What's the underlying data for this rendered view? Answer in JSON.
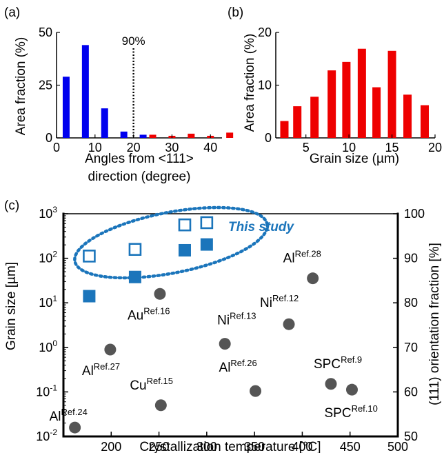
{
  "chart_data": [
    {
      "panel_label": "(a)",
      "type": "bar",
      "xlabel_lines": [
        "Angles from <111>",
        "direction (degree)"
      ],
      "ylabel": "Area fraction (%)",
      "xlim": [
        0,
        43
      ],
      "ylim": [
        0,
        50
      ],
      "xticks": [
        0,
        10,
        20,
        30,
        40
      ],
      "yticks": [
        0,
        25,
        50
      ],
      "marker_line": {
        "x": 20,
        "label": "90%"
      },
      "series": [
        {
          "color": "#0000ee",
          "x": [
            2.5,
            7.5,
            12.5,
            17.5,
            22.5
          ],
          "values": [
            29,
            44,
            14,
            3,
            1.5
          ]
        },
        {
          "color": "#ee0000",
          "x": [
            25,
            30,
            35,
            40,
            45
          ],
          "values": [
            1.5,
            1,
            2,
            1,
            2.5
          ]
        }
      ]
    },
    {
      "panel_label": "(b)",
      "type": "bar",
      "xlabel": "Grain size (µm)",
      "ylabel": "Area fraction (%)",
      "xlim": [
        1.5,
        20
      ],
      "ylim": [
        0,
        20
      ],
      "xticks": [
        5,
        10,
        15,
        20
      ],
      "yticks": [
        0,
        10,
        20
      ],
      "series": [
        {
          "color": "#ee0000",
          "x": [
            2.5,
            4,
            6,
            8,
            9.7,
            11.5,
            13.2,
            15,
            16.8,
            18.8
          ],
          "values": [
            3.2,
            6,
            7.8,
            12.8,
            14.4,
            16.9,
            9.6,
            16.5,
            8.2,
            6.2
          ]
        }
      ]
    },
    {
      "panel_label": "(c)",
      "type": "scatter",
      "xlabel": "Crystallization temperature [°C]",
      "ylabel": "Grain size [µm]",
      "ylabel_right": "(111) orientation fraction [%]",
      "xlim": [
        150,
        500
      ],
      "ylim_log": [
        -2,
        3
      ],
      "ylim_right": [
        50,
        100
      ],
      "xticks": [
        200,
        250,
        300,
        350,
        400,
        450,
        500
      ],
      "yticks_left": [
        {
          "value": -2,
          "base": "10",
          "exp": "-2"
        },
        {
          "value": -1,
          "base": "10",
          "exp": "-1"
        },
        {
          "value": 0,
          "base": "10",
          "exp": "0"
        },
        {
          "value": 1,
          "base": "10",
          "exp": "1"
        },
        {
          "value": 2,
          "base": "10",
          "exp": "2"
        },
        {
          "value": 3,
          "base": "10",
          "exp": "3"
        }
      ],
      "yticks_right": [
        50,
        60,
        70,
        80,
        90,
        100
      ],
      "annotation": "This study",
      "this_study_color": "#1b75bb",
      "literature_color": "#555555",
      "grain_size_this_study": [
        {
          "x": 177,
          "log_y": 1.15
        },
        {
          "x": 225,
          "log_y": 1.58
        },
        {
          "x": 277,
          "log_y": 2.18
        },
        {
          "x": 300,
          "log_y": 2.31
        }
      ],
      "orientation_this_study": [
        {
          "x": 177,
          "y": 90.5
        },
        {
          "x": 225,
          "y": 92
        },
        {
          "x": 277,
          "y": 97.5
        },
        {
          "x": 300,
          "y": 98
        }
      ],
      "literature": [
        {
          "x": 162,
          "log_y": -1.8,
          "name": "Al",
          "ref": "Ref.24"
        },
        {
          "x": 199,
          "log_y": -0.05,
          "name": "Al",
          "ref": "Ref.27"
        },
        {
          "x": 251,
          "log_y": 1.2,
          "name": "Au",
          "ref": "Ref.16"
        },
        {
          "x": 252,
          "log_y": -1.3,
          "name": "Cu",
          "ref": "Ref.15"
        },
        {
          "x": 319,
          "log_y": 0.08,
          "name": "Ni",
          "ref": "Ref.13"
        },
        {
          "x": 351,
          "log_y": -0.98,
          "name": "Al",
          "ref": "Ref.26"
        },
        {
          "x": 386,
          "log_y": 0.52,
          "name": "Ni",
          "ref": "Ref.12"
        },
        {
          "x": 411,
          "log_y": 1.55,
          "name": "Al",
          "ref": "Ref.28"
        },
        {
          "x": 430,
          "log_y": -0.82,
          "name": "SPC",
          "ref": "Ref.9"
        },
        {
          "x": 452,
          "log_y": -0.95,
          "name": "SPC",
          "ref": "Ref.10"
        }
      ]
    }
  ]
}
